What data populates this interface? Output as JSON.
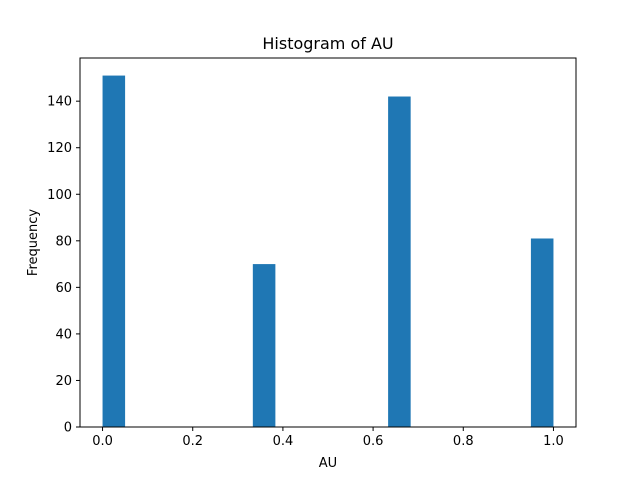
{
  "chart_data": {
    "type": "bar",
    "title": "Histogram of AU",
    "xlabel": "AU",
    "ylabel": "Frequency",
    "xlim": [
      -0.05,
      1.05
    ],
    "ylim": [
      0,
      158.55
    ],
    "xticks": [
      "0.0",
      "0.2",
      "0.4",
      "0.6",
      "0.8",
      "1.0"
    ],
    "xtick_values": [
      0.0,
      0.2,
      0.4,
      0.6,
      0.8,
      1.0
    ],
    "yticks": [
      "0",
      "20",
      "40",
      "60",
      "80",
      "100",
      "120",
      "140"
    ],
    "ytick_values": [
      0,
      20,
      40,
      60,
      80,
      100,
      120,
      140
    ],
    "bin_width": 0.05,
    "bins": [
      {
        "start": 0.0,
        "end": 0.05,
        "value": 151
      },
      {
        "start": 0.3333,
        "end": 0.3833,
        "value": 70
      },
      {
        "start": 0.6333,
        "end": 0.6833,
        "value": 142
      },
      {
        "start": 0.95,
        "end": 1.0,
        "value": 81
      }
    ],
    "bar_color": "#1f77b4",
    "grid": false,
    "legend": "none"
  }
}
